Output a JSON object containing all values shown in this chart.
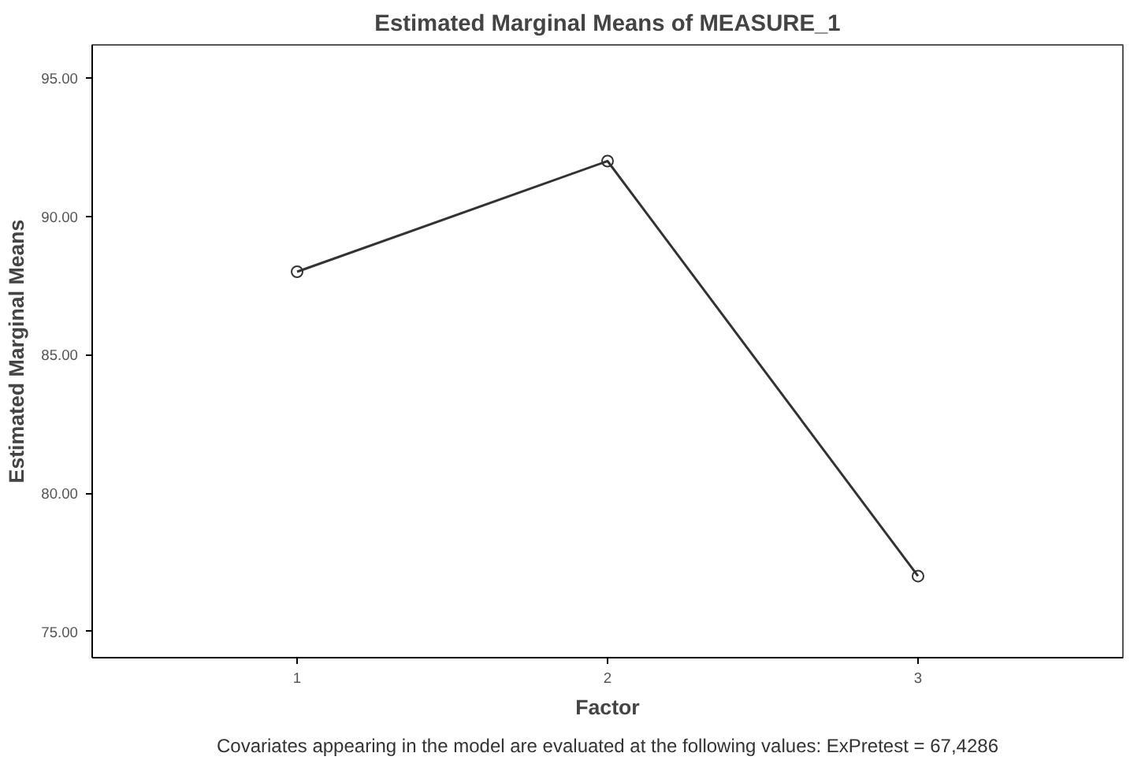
{
  "chart_data": {
    "type": "line",
    "title": "Estimated Marginal Means of MEASURE_1",
    "xlabel": "Factor",
    "ylabel": "Estimated Marginal Means",
    "categories": [
      "1",
      "2",
      "3"
    ],
    "series": [
      {
        "color": "#333333",
        "values": [
          88,
          92,
          77
        ]
      }
    ],
    "ylim": [
      74.05,
      96.2
    ],
    "yticks": [
      {
        "value": 75,
        "label": "75.00"
      },
      {
        "value": 80,
        "label": "80.00"
      },
      {
        "value": 85,
        "label": "85.00"
      },
      {
        "value": 90,
        "label": "90.00"
      },
      {
        "value": 95,
        "label": "95.00"
      }
    ],
    "marker": "circle",
    "line_style": "solid",
    "grid": false,
    "annotations": [
      "Covariates appearing in the model are evaluated at the following values: ExPretest = 67,4286"
    ]
  }
}
